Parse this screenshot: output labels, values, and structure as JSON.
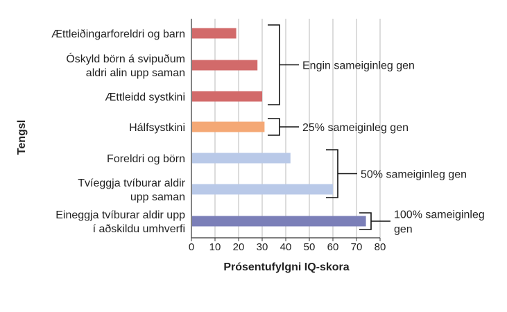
{
  "chart_data": {
    "type": "bar",
    "orientation": "horizontal",
    "title": "",
    "xlabel": "Prósentufylgni IQ-skora",
    "ylabel": "Tengsl",
    "xlim": [
      0,
      80
    ],
    "xticks": [
      0,
      10,
      20,
      30,
      40,
      50,
      60,
      70,
      80
    ],
    "grid": true,
    "categories": [
      {
        "lines": [
          "Ættleiðingarforeldri og barn"
        ],
        "value": 19,
        "color": "#d26a6a"
      },
      {
        "lines": [
          "Óskyld börn á svipuðum",
          "aldri alin upp saman"
        ],
        "value": 28,
        "color": "#d26a6a"
      },
      {
        "lines": [
          "Ættleidd systkini"
        ],
        "value": 30,
        "color": "#d26a6a"
      },
      {
        "lines": [
          "Hálfsystkini"
        ],
        "value": 31,
        "color": "#f4a875"
      },
      {
        "lines": [
          "Foreldri og börn"
        ],
        "value": 42,
        "color": "#b9c9e8"
      },
      {
        "lines": [
          "Tvíeggja tvíburar aldir",
          "upp saman"
        ],
        "value": 60,
        "color": "#b9c9e8"
      },
      {
        "lines": [
          "Eineggja tvíburar aldir upp",
          "í aðskildu umhverfi"
        ],
        "value": 74,
        "color": "#7b7fb8"
      }
    ],
    "groups": [
      {
        "lines": [
          "Engin sameiginleg gen"
        ],
        "from": 0,
        "to": 2
      },
      {
        "lines": [
          "25% sameiginleg gen"
        ],
        "from": 3,
        "to": 3
      },
      {
        "lines": [
          "50% sameiginleg gen"
        ],
        "from": 4,
        "to": 5
      },
      {
        "lines": [
          "100% sameiginleg",
          "gen"
        ],
        "from": 6,
        "to": 6
      }
    ]
  }
}
